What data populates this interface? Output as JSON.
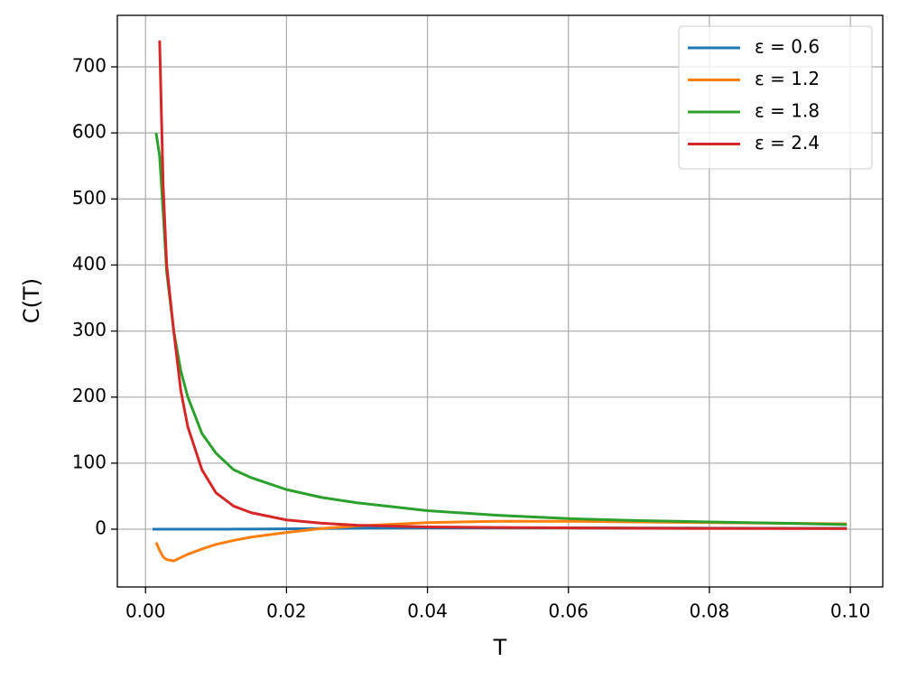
{
  "chart_data": {
    "type": "line",
    "xlabel": "T",
    "ylabel": "C(T)",
    "x": [
      0.001,
      0.0015,
      0.002,
      0.0025,
      0.003,
      0.004,
      0.005,
      0.006,
      0.008,
      0.01,
      0.0125,
      0.015,
      0.02,
      0.025,
      0.03,
      0.04,
      0.05,
      0.06,
      0.07,
      0.08,
      0.09,
      0.0995
    ],
    "series": [
      {
        "name": "ε = 0.6",
        "color": "#1f77b4",
        "values": [
          0,
          0,
          0,
          0,
          0,
          0,
          0,
          0,
          0,
          0,
          0.1,
          0.2,
          0.5,
          1,
          1.5,
          2,
          2,
          2,
          1.8,
          1.6,
          1.4,
          1.3
        ]
      },
      {
        "name": "ε = 1.2",
        "color": "#ff7f0e",
        "values": [
          null,
          -20,
          -32,
          -42,
          -46,
          -48,
          -43,
          -38,
          -30,
          -23,
          -17,
          -12,
          -5,
          1,
          5,
          10,
          12,
          12,
          11,
          10,
          9,
          8
        ]
      },
      {
        "name": "ε = 1.8",
        "color": "#2ca02c",
        "values": [
          null,
          600,
          565,
          480,
          390,
          300,
          240,
          200,
          145,
          115,
          90,
          78,
          60,
          48,
          40,
          28,
          21,
          16,
          13,
          11,
          9,
          7
        ]
      },
      {
        "name": "ε = 2.4",
        "color": "#d62728",
        "values": [
          null,
          null,
          740,
          520,
          400,
          300,
          210,
          155,
          90,
          55,
          35,
          25,
          14,
          9,
          6,
          3.5,
          2.5,
          2,
          1.5,
          1.2,
          1,
          0.9
        ]
      }
    ],
    "xlim": [
      -0.004,
      0.1046
    ],
    "ylim": [
      -87.5,
      778
    ],
    "xticks": [
      {
        "value": 0,
        "label": "0.00"
      },
      {
        "value": 0.02,
        "label": "0.02"
      },
      {
        "value": 0.04,
        "label": "0.04"
      },
      {
        "value": 0.06,
        "label": "0.06"
      },
      {
        "value": 0.08,
        "label": "0.08"
      },
      {
        "value": 0.1,
        "label": "0.10"
      }
    ],
    "yticks": [
      0,
      100,
      200,
      300,
      400,
      500,
      600,
      700
    ],
    "grid": true,
    "legend": "upper right"
  }
}
